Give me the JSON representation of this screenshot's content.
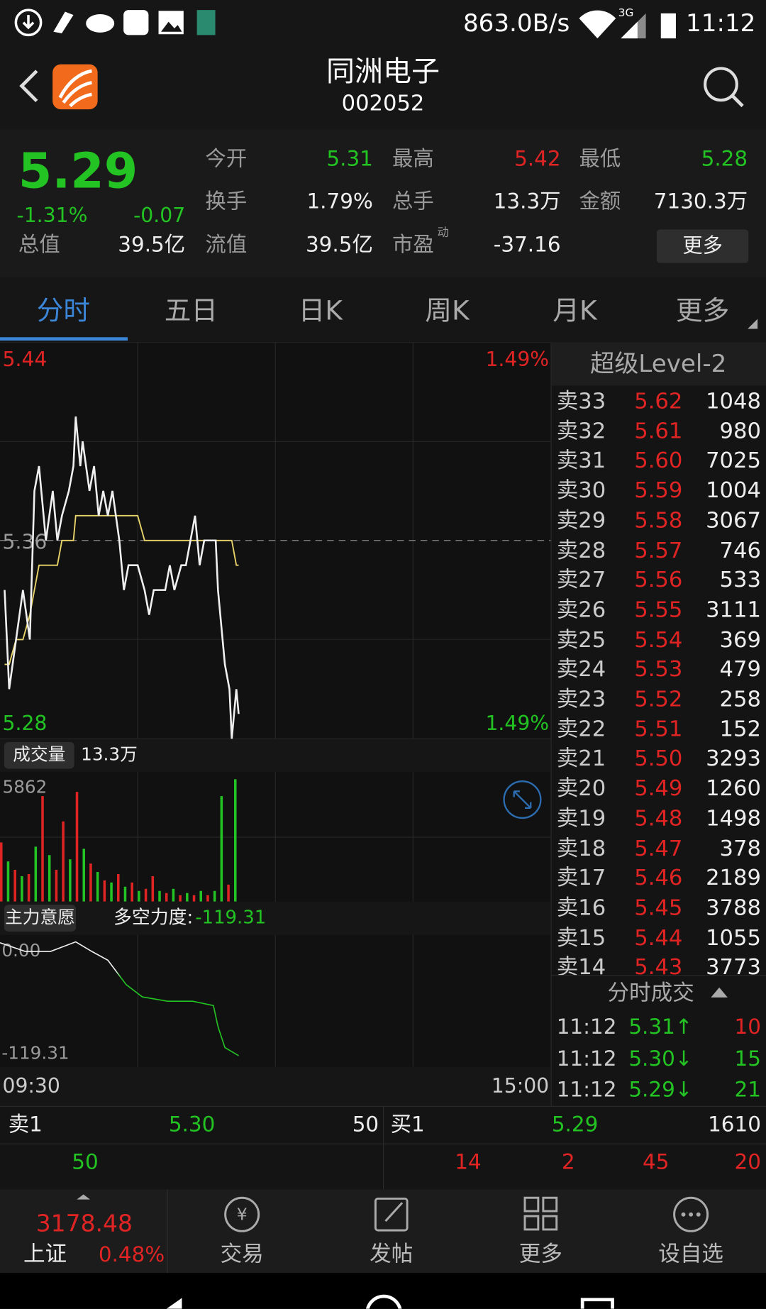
{
  "status_bar": {
    "speed": "863.0B/s",
    "network": "3G",
    "time": "11:12"
  },
  "header": {
    "title": "同洲电子",
    "code": "002052"
  },
  "quote": {
    "price": "5.29",
    "change_pct": "-1.31%",
    "change": "-0.07",
    "stats": [
      {
        "label": "今开",
        "value": "5.31"
      },
      {
        "label": "最高",
        "value": "5.42"
      },
      {
        "label": "最低",
        "value": "5.28"
      },
      {
        "label": "换手",
        "value": "1.79%"
      },
      {
        "label": "总手",
        "value": "13.3万"
      },
      {
        "label": "金额",
        "value": "7130.3万"
      },
      {
        "label": "总值",
        "value": "39.5亿"
      },
      {
        "label": "流值",
        "value": "39.5亿"
      },
      {
        "label": "市盈",
        "sup": "动",
        "value": "-37.16"
      }
    ],
    "more": "更多"
  },
  "tabs": [
    "分时",
    "五日",
    "日K",
    "周K",
    "月K",
    "更多"
  ],
  "chart": {
    "xlim": [
      0,
      240
    ],
    "ylim": [
      5.28,
      5.44
    ],
    "yticks": [
      5.44,
      5.36,
      5.28
    ],
    "pct_labels": [
      "1.49%",
      "1.49%"
    ],
    "x": [
      2,
      4,
      7,
      10,
      13,
      15,
      17,
      20,
      23,
      25,
      27,
      30,
      32,
      33,
      35,
      36,
      39,
      41,
      43,
      45,
      47,
      49,
      52,
      54,
      56,
      58,
      60,
      63,
      65,
      67,
      70,
      72,
      74,
      76,
      79,
      81,
      83,
      85,
      87,
      89,
      92,
      94,
      95,
      97,
      98,
      100,
      101,
      103,
      104
    ],
    "price": {
      "color": "#f0f0f0",
      "values": [
        5.34,
        5.3,
        5.32,
        5.34,
        5.32,
        5.38,
        5.39,
        5.36,
        5.38,
        5.36,
        5.37,
        5.38,
        5.39,
        5.41,
        5.39,
        5.4,
        5.38,
        5.39,
        5.37,
        5.38,
        5.37,
        5.38,
        5.36,
        5.34,
        5.35,
        5.35,
        5.35,
        5.34,
        5.33,
        5.34,
        5.34,
        5.34,
        5.35,
        5.34,
        5.35,
        5.35,
        5.36,
        5.37,
        5.35,
        5.36,
        5.36,
        5.36,
        5.34,
        5.32,
        5.31,
        5.3,
        5.28,
        5.3,
        5.29
      ]
    },
    "average": {
      "color": "#e8d46a",
      "values": [
        5.31,
        5.31,
        5.32,
        5.32,
        5.33,
        5.34,
        5.35,
        5.35,
        5.35,
        5.35,
        5.36,
        5.36,
        5.36,
        5.37,
        5.37,
        5.37,
        5.37,
        5.37,
        5.37,
        5.37,
        5.37,
        5.37,
        5.37,
        5.37,
        5.37,
        5.37,
        5.37,
        5.36,
        5.36,
        5.36,
        5.36,
        5.36,
        5.36,
        5.36,
        5.36,
        5.36,
        5.36,
        5.36,
        5.36,
        5.36,
        5.36,
        5.36,
        5.36,
        5.36,
        5.36,
        5.36,
        5.36,
        5.35,
        5.35
      ]
    },
    "volume": {
      "label": "成交量",
      "total": "13.3万",
      "ylim": [
        0,
        5862
      ],
      "yticks": [
        5862
      ],
      "x": [
        0,
        3,
        6,
        9,
        12,
        15,
        18,
        21,
        24,
        27,
        30,
        33,
        36,
        39,
        42,
        45,
        48,
        51,
        54,
        57,
        60,
        63,
        66,
        69,
        72,
        75,
        78,
        81,
        84,
        87,
        90,
        93,
        96,
        99,
        102
      ],
      "values": [
        2800,
        1900,
        1500,
        1200,
        1300,
        2600,
        5000,
        2200,
        1500,
        3800,
        2000,
        5200,
        2500,
        1800,
        1400,
        1000,
        900,
        1300,
        700,
        900,
        500,
        600,
        1200,
        500,
        400,
        600,
        300,
        400,
        300,
        500,
        300,
        500,
        5000,
        800,
        5800
      ],
      "colors": [
        "#e02424",
        "#22c322",
        "#e02424",
        "#22c322",
        "#e02424",
        "#22c322",
        "#e02424",
        "#22c322",
        "#e02424",
        "#e02424",
        "#22c322",
        "#e02424",
        "#22c322",
        "#e02424",
        "#22c322",
        "#e02424",
        "#22c322",
        "#e02424",
        "#22c322",
        "#e02424",
        "#22c322",
        "#e02424",
        "#e02424",
        "#22c322",
        "#e02424",
        "#22c322",
        "#e02424",
        "#22c322",
        "#e02424",
        "#22c322",
        "#e02424",
        "#22c322",
        "#22c322",
        "#e02424",
        "#22c322"
      ]
    },
    "force": {
      "label": "主力意愿",
      "name": "多空力度:",
      "current": "-119.31",
      "ylim": [
        -132,
        19
      ],
      "yticks": [
        {
          "value": 0,
          "label": "0.00"
        },
        -119.31
      ],
      "x": [
        0,
        11,
        22,
        33,
        40,
        47,
        55,
        62,
        73,
        84,
        93,
        95,
        98,
        104
      ],
      "values": [
        10,
        0,
        0,
        11,
        0,
        -10,
        -38,
        -52,
        -57,
        -57,
        -62,
        -86,
        -110,
        -119.31
      ]
    },
    "time_labels": [
      "09:30",
      "15:00"
    ]
  },
  "level2": {
    "title": "超级Level-2",
    "rows": [
      [
        "卖33",
        "5.62",
        "1048"
      ],
      [
        "卖32",
        "5.61",
        "980"
      ],
      [
        "卖31",
        "5.60",
        "7025"
      ],
      [
        "卖30",
        "5.59",
        "1004"
      ],
      [
        "卖29",
        "5.58",
        "3067"
      ],
      [
        "卖28",
        "5.57",
        "746"
      ],
      [
        "卖27",
        "5.56",
        "533"
      ],
      [
        "卖26",
        "5.55",
        "3111"
      ],
      [
        "卖25",
        "5.54",
        "369"
      ],
      [
        "卖24",
        "5.53",
        "479"
      ],
      [
        "卖23",
        "5.52",
        "258"
      ],
      [
        "卖22",
        "5.51",
        "152"
      ],
      [
        "卖21",
        "5.50",
        "3293"
      ],
      [
        "卖20",
        "5.49",
        "1260"
      ],
      [
        "卖19",
        "5.48",
        "1498"
      ],
      [
        "卖18",
        "5.47",
        "378"
      ],
      [
        "卖17",
        "5.46",
        "2189"
      ],
      [
        "卖16",
        "5.45",
        "3788"
      ],
      [
        "卖15",
        "5.44",
        "1055"
      ],
      [
        "卖14",
        "5.43",
        "3773"
      ]
    ]
  },
  "trades": {
    "title": "分时成交",
    "rows": [
      [
        "11:12",
        "5.31↑",
        "10"
      ],
      [
        "11:12",
        "5.30↓",
        "15"
      ],
      [
        "11:12",
        "5.29↓",
        "21"
      ]
    ]
  },
  "book": {
    "ask": {
      "label": "卖1",
      "price": "5.30",
      "volume": "50"
    },
    "bid": {
      "label": "买1",
      "price": "5.29",
      "volume": "1610"
    },
    "ask_ticks": [
      "50"
    ],
    "bid_ticks": [
      "14",
      "2",
      "45",
      "20"
    ]
  },
  "bottom_nav": {
    "index_value": "3178.48",
    "index_name": "上证",
    "index_change": "0.48%",
    "items": [
      "交易",
      "发帖",
      "更多",
      "设自选"
    ]
  }
}
